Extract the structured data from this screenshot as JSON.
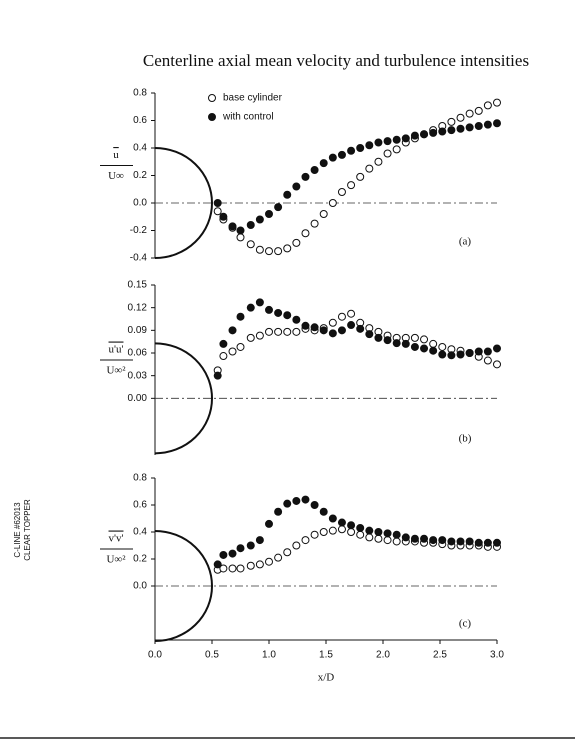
{
  "margin_note": [
    "C-LINE #62013",
    "CLEAR TOPPER"
  ],
  "chart_data": [
    {
      "type": "scatter",
      "title": "Centerline axial mean velocity and turbulence intensities",
      "panel_label": "(a)",
      "ylabel": {
        "numerator": "u",
        "denominator": "U∞"
      },
      "xlim": [
        0,
        3
      ],
      "ylim": [
        -0.4,
        0.8
      ],
      "yticks": [
        -0.4,
        -0.2,
        {
          "value": 0,
          "label": "0.0"
        },
        0.2,
        0.4,
        0.6,
        0.8
      ],
      "legend": "upper left",
      "x": [
        0.55,
        0.6,
        0.68,
        0.75,
        0.84,
        0.92,
        1.0,
        1.08,
        1.16,
        1.24,
        1.32,
        1.4,
        1.48,
        1.56,
        1.64,
        1.72,
        1.8,
        1.88,
        1.96,
        2.04,
        2.12,
        2.2,
        2.28,
        2.36,
        2.44,
        2.52,
        2.6,
        2.68,
        2.76,
        2.84,
        2.92,
        3.0
      ],
      "series": [
        {
          "name": "base cylinder",
          "color": "#111111",
          "filled": false,
          "values": [
            -0.06,
            -0.12,
            -0.18,
            -0.25,
            -0.3,
            -0.34,
            -0.35,
            -0.35,
            -0.33,
            -0.29,
            -0.22,
            -0.15,
            -0.08,
            0.0,
            0.08,
            0.13,
            0.19,
            0.25,
            0.3,
            0.36,
            0.39,
            0.44,
            0.47,
            0.5,
            0.53,
            0.56,
            0.59,
            0.62,
            0.65,
            0.67,
            0.71,
            0.73
          ]
        },
        {
          "name": "with control",
          "color": "#111111",
          "filled": true,
          "values": [
            0.0,
            -0.1,
            -0.17,
            -0.2,
            -0.16,
            -0.12,
            -0.08,
            -0.03,
            0.06,
            0.12,
            0.19,
            0.24,
            0.29,
            0.33,
            0.35,
            0.38,
            0.4,
            0.42,
            0.44,
            0.45,
            0.46,
            0.47,
            0.49,
            0.5,
            0.51,
            0.52,
            0.53,
            0.54,
            0.55,
            0.56,
            0.57,
            0.58
          ]
        }
      ]
    },
    {
      "type": "scatter",
      "panel_label": "(b)",
      "ylabel": {
        "numerator": "u'u'",
        "denominator": "U∞²"
      },
      "xlim": [
        0,
        3
      ],
      "ylim": [
        -0.075,
        0.15
      ],
      "yticks": [
        {
          "value": 0,
          "label": "0.00"
        },
        {
          "value": 0.03,
          "label": "0.03"
        },
        {
          "value": 0.06,
          "label": "0.06"
        },
        {
          "value": 0.09,
          "label": "0.09"
        },
        {
          "value": 0.12,
          "label": "0.12"
        },
        {
          "value": 0.15,
          "label": "0.15"
        }
      ],
      "x": [
        0.55,
        0.6,
        0.68,
        0.75,
        0.84,
        0.92,
        1.0,
        1.08,
        1.16,
        1.24,
        1.32,
        1.4,
        1.48,
        1.56,
        1.64,
        1.72,
        1.8,
        1.88,
        1.96,
        2.04,
        2.12,
        2.2,
        2.28,
        2.36,
        2.44,
        2.52,
        2.6,
        2.68,
        2.76,
        2.84,
        2.92,
        3.0
      ],
      "series": [
        {
          "color": "#111111",
          "filled": false,
          "values": [
            0.037,
            0.056,
            0.062,
            0.068,
            0.08,
            0.083,
            0.088,
            0.088,
            0.088,
            0.088,
            0.092,
            0.09,
            0.093,
            0.1,
            0.108,
            0.112,
            0.1,
            0.093,
            0.088,
            0.083,
            0.08,
            0.08,
            0.08,
            0.078,
            0.072,
            0.068,
            0.065,
            0.063,
            0.06,
            0.055,
            0.05,
            0.045
          ]
        },
        {
          "color": "#111111",
          "filled": true,
          "values": [
            0.03,
            0.072,
            0.09,
            0.108,
            0.12,
            0.127,
            0.117,
            0.113,
            0.11,
            0.104,
            0.096,
            0.094,
            0.09,
            0.086,
            0.09,
            0.097,
            0.092,
            0.085,
            0.08,
            0.077,
            0.073,
            0.072,
            0.068,
            0.066,
            0.063,
            0.058,
            0.057,
            0.058,
            0.06,
            0.062,
            0.062,
            0.066
          ]
        }
      ]
    },
    {
      "type": "scatter",
      "panel_label": "(c)",
      "ylabel": {
        "numerator": "v'v'",
        "denominator": "U∞²"
      },
      "xlabel": "x/D",
      "xlim": [
        0,
        3
      ],
      "ylim": [
        -0.4,
        0.8
      ],
      "xticks": [
        {
          "value": 0,
          "label": "0.0"
        },
        0.5,
        {
          "value": 1,
          "label": "1.0"
        },
        1.5,
        {
          "value": 2,
          "label": "2.0"
        },
        2.5,
        {
          "value": 3,
          "label": "3.0"
        }
      ],
      "yticks": [
        {
          "value": 0,
          "label": "0.0"
        },
        0.2,
        0.4,
        0.6,
        0.8
      ],
      "x": [
        0.55,
        0.6,
        0.68,
        0.75,
        0.84,
        0.92,
        1.0,
        1.08,
        1.16,
        1.24,
        1.32,
        1.4,
        1.48,
        1.56,
        1.64,
        1.72,
        1.8,
        1.88,
        1.96,
        2.04,
        2.12,
        2.2,
        2.28,
        2.36,
        2.44,
        2.52,
        2.6,
        2.68,
        2.76,
        2.84,
        2.92,
        3.0
      ],
      "series": [
        {
          "color": "#111111",
          "filled": false,
          "values": [
            0.12,
            0.13,
            0.13,
            0.13,
            0.15,
            0.16,
            0.18,
            0.21,
            0.25,
            0.3,
            0.34,
            0.38,
            0.4,
            0.41,
            0.42,
            0.4,
            0.38,
            0.36,
            0.35,
            0.34,
            0.33,
            0.33,
            0.33,
            0.32,
            0.32,
            0.31,
            0.3,
            0.3,
            0.3,
            0.3,
            0.29,
            0.29
          ]
        },
        {
          "color": "#111111",
          "filled": true,
          "values": [
            0.16,
            0.23,
            0.24,
            0.28,
            0.3,
            0.34,
            0.46,
            0.55,
            0.61,
            0.63,
            0.64,
            0.6,
            0.55,
            0.5,
            0.47,
            0.45,
            0.43,
            0.41,
            0.4,
            0.39,
            0.38,
            0.36,
            0.35,
            0.35,
            0.34,
            0.34,
            0.33,
            0.33,
            0.33,
            0.32,
            0.32,
            0.32
          ]
        }
      ]
    }
  ]
}
